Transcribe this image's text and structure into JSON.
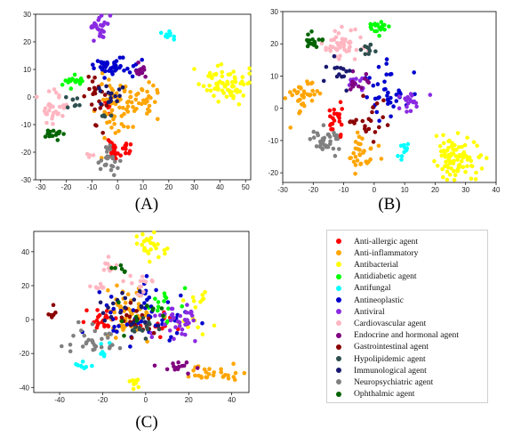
{
  "figure": {
    "captions": [
      "(A)",
      "(B)",
      "(C)"
    ],
    "legend_items": [
      {
        "label": "Anti-allergic agent",
        "color": "#ff0000"
      },
      {
        "label": "Anti-inflammatory",
        "color": "#ffa500"
      },
      {
        "label": "Antibacterial",
        "color": "#ffff00"
      },
      {
        "label": "Antidiabetic agent",
        "color": "#00ff00"
      },
      {
        "label": "Antifungal",
        "color": "#00ffff"
      },
      {
        "label": "Antineoplastic",
        "color": "#0000cd"
      },
      {
        "label": "Antiviral",
        "color": "#8a2be2"
      },
      {
        "label": "Cardiovascular agent",
        "color": "#ffb6c1"
      },
      {
        "label": "Endocrine and hormonal agent",
        "color": "#800080"
      },
      {
        "label": "Gastrointestinal agent",
        "color": "#8b0000"
      },
      {
        "label": "Hypolipidemic agent",
        "color": "#2f4f4f"
      },
      {
        "label": "Immunological agent",
        "color": "#191970"
      },
      {
        "label": "Neuropsychiatric agent",
        "color": "#808080"
      },
      {
        "label": "Ophthalmic agent",
        "color": "#006400"
      }
    ]
  },
  "chart_data": [
    {
      "type": "scatter",
      "panel": "(A)",
      "title": "",
      "xlabel": "",
      "ylabel": "",
      "xlim": [
        -32,
        52
      ],
      "ylim": [
        -30,
        30
      ],
      "xticks": [
        -30,
        -20,
        -10,
        0,
        10,
        20,
        30,
        40,
        50
      ],
      "yticks": [
        -30,
        -20,
        -10,
        0,
        10,
        20,
        30
      ],
      "clusters": [
        {
          "category": "Anti-allergic agent",
          "center": [
            1,
            -19
          ],
          "spread": [
            3,
            1.5
          ],
          "n": 26
        },
        {
          "category": "Anti-allergic agent",
          "center": [
            -3,
            -3
          ],
          "spread": [
            1.5,
            1.5
          ],
          "n": 6
        },
        {
          "category": "Anti-inflammatory",
          "center": [
            -2,
            -5
          ],
          "spread": [
            3,
            6
          ],
          "n": 45
        },
        {
          "category": "Anti-inflammatory",
          "center": [
            8,
            -2
          ],
          "spread": [
            3.5,
            3
          ],
          "n": 40
        },
        {
          "category": "Antibacterial",
          "center": [
            42,
            5
          ],
          "spread": [
            4.5,
            3
          ],
          "n": 70
        },
        {
          "category": "Antidiabetic agent",
          "center": [
            -18,
            5.5
          ],
          "spread": [
            2,
            1.2
          ],
          "n": 16
        },
        {
          "category": "Antifungal",
          "center": [
            20,
            22.5
          ],
          "spread": [
            1.2,
            1
          ],
          "n": 10
        },
        {
          "category": "Antineoplastic",
          "center": [
            -3,
            11
          ],
          "spread": [
            3,
            2
          ],
          "n": 40
        },
        {
          "category": "Antineoplastic",
          "center": [
            6,
            9
          ],
          "spread": [
            1.5,
            1.5
          ],
          "n": 8
        },
        {
          "category": "Antiviral",
          "center": [
            -7,
            25.5
          ],
          "spread": [
            2,
            2.5
          ],
          "n": 26
        },
        {
          "category": "Cardiovascular agent",
          "center": [
            -25,
            -5
          ],
          "spread": [
            2.5,
            3.5
          ],
          "n": 32
        },
        {
          "category": "Cardiovascular agent",
          "center": [
            -10,
            -21
          ],
          "spread": [
            1,
            1
          ],
          "n": 4
        },
        {
          "category": "Endocrine and hormonal agent",
          "center": [
            8.5,
            9.5
          ],
          "spread": [
            1.2,
            1
          ],
          "n": 12
        },
        {
          "category": "Gastrointestinal agent",
          "center": [
            -9,
            -2
          ],
          "spread": [
            2,
            6
          ],
          "n": 22
        },
        {
          "category": "Hypolipidemic agent",
          "center": [
            -17,
            -1
          ],
          "spread": [
            1.5,
            1.5
          ],
          "n": 8
        },
        {
          "category": "Hypolipidemic agent",
          "center": [
            -5,
            -7
          ],
          "spread": [
            1,
            1
          ],
          "n": 4
        },
        {
          "category": "Immunological agent",
          "center": [
            -2,
            2
          ],
          "spread": [
            3,
            2
          ],
          "n": 16
        },
        {
          "category": "Neuropsychiatric agent",
          "center": [
            -4,
            -22
          ],
          "spread": [
            2,
            2.5
          ],
          "n": 26
        },
        {
          "category": "Ophthalmic agent",
          "center": [
            -25,
            -13
          ],
          "spread": [
            2,
            1
          ],
          "n": 16
        }
      ]
    },
    {
      "type": "scatter",
      "panel": "(B)",
      "title": "",
      "xlabel": "",
      "ylabel": "",
      "xlim": [
        -30,
        40
      ],
      "ylim": [
        -23,
        30
      ],
      "xticks": [
        -30,
        -20,
        -10,
        0,
        10,
        20,
        30,
        40
      ],
      "yticks": [
        -20,
        -10,
        0,
        10,
        20,
        30
      ],
      "clusters": [
        {
          "category": "Anti-allergic agent",
          "center": [
            -13,
            -3
          ],
          "spread": [
            1.5,
            3
          ],
          "n": 22
        },
        {
          "category": "Anti-inflammatory",
          "center": [
            -23,
            4
          ],
          "spread": [
            2.5,
            3
          ],
          "n": 36
        },
        {
          "category": "Anti-inflammatory",
          "center": [
            -5,
            -14
          ],
          "spread": [
            2.5,
            2.5
          ],
          "n": 32
        },
        {
          "category": "Antibacterial",
          "center": [
            28,
            -15
          ],
          "spread": [
            4,
            3
          ],
          "n": 90
        },
        {
          "category": "Antidiabetic agent",
          "center": [
            1,
            25
          ],
          "spread": [
            2,
            1.5
          ],
          "n": 18
        },
        {
          "category": "Antifungal",
          "center": [
            10,
            -13
          ],
          "spread": [
            1,
            1.3
          ],
          "n": 10
        },
        {
          "category": "Antineoplastic",
          "center": [
            4,
            5
          ],
          "spread": [
            3.5,
            3.5
          ],
          "n": 40
        },
        {
          "category": "Antiviral",
          "center": [
            12,
            2
          ],
          "spread": [
            2.5,
            2
          ],
          "n": 20
        },
        {
          "category": "Antiviral",
          "center": [
            -6,
            8
          ],
          "spread": [
            2,
            1.5
          ],
          "n": 12
        },
        {
          "category": "Cardiovascular agent",
          "center": [
            -10,
            20
          ],
          "spread": [
            3,
            2.5
          ],
          "n": 46
        },
        {
          "category": "Endocrine and hormonal agent",
          "center": [
            -5,
            8
          ],
          "spread": [
            2,
            1.5
          ],
          "n": 14
        },
        {
          "category": "Gastrointestinal agent",
          "center": [
            -2,
            -4
          ],
          "spread": [
            3,
            3
          ],
          "n": 22
        },
        {
          "category": "Hypolipidemic agent",
          "center": [
            -2,
            19
          ],
          "spread": [
            1.5,
            1.5
          ],
          "n": 10
        },
        {
          "category": "Immunological agent",
          "center": [
            -13,
            10
          ],
          "spread": [
            2.5,
            3
          ],
          "n": 14
        },
        {
          "category": "Neuropsychiatric agent",
          "center": [
            -16,
            -10
          ],
          "spread": [
            2.5,
            2
          ],
          "n": 36
        },
        {
          "category": "Ophthalmic agent",
          "center": [
            -20,
            21
          ],
          "spread": [
            1.5,
            1.2
          ],
          "n": 16
        }
      ]
    },
    {
      "type": "scatter",
      "panel": "(C)",
      "title": "",
      "xlabel": "",
      "ylabel": "",
      "xlim": [
        -52,
        48
      ],
      "ylim": [
        -43,
        52
      ],
      "xticks": [
        -40,
        -20,
        0,
        20,
        40
      ],
      "yticks": [
        -40,
        -20,
        0,
        20,
        40
      ],
      "clusters": [
        {
          "category": "Anti-allergic agent",
          "center": [
            -20,
            0
          ],
          "spread": [
            3,
            3
          ],
          "n": 24
        },
        {
          "category": "Anti-allergic agent",
          "center": [
            8,
            -5
          ],
          "spread": [
            5,
            4
          ],
          "n": 12
        },
        {
          "category": "Anti-inflammatory",
          "center": [
            -7,
            3
          ],
          "spread": [
            5,
            8
          ],
          "n": 60
        },
        {
          "category": "Anti-inflammatory",
          "center": [
            33,
            -32
          ],
          "spread": [
            6,
            2
          ],
          "n": 28
        },
        {
          "category": "Antibacterial",
          "center": [
            2,
            42
          ],
          "spread": [
            4,
            5
          ],
          "n": 26
        },
        {
          "category": "Antibacterial",
          "center": [
            -5,
            -37
          ],
          "spread": [
            2,
            1.5
          ],
          "n": 10
        },
        {
          "category": "Antibacterial",
          "center": [
            22,
            3
          ],
          "spread": [
            5,
            8
          ],
          "n": 18
        },
        {
          "category": "Antidiabetic agent",
          "center": [
            9,
            8
          ],
          "spread": [
            5,
            6
          ],
          "n": 16
        },
        {
          "category": "Antifungal",
          "center": [
            -29,
            -27
          ],
          "spread": [
            2,
            1.5
          ],
          "n": 8
        },
        {
          "category": "Antifungal",
          "center": [
            -18,
            -18
          ],
          "spread": [
            3,
            3
          ],
          "n": 6
        },
        {
          "category": "Antineoplastic",
          "center": [
            -2,
            1
          ],
          "spread": [
            12,
            10
          ],
          "n": 50
        },
        {
          "category": "Antiviral",
          "center": [
            15,
            0
          ],
          "spread": [
            5,
            6
          ],
          "n": 40
        },
        {
          "category": "Cardiovascular agent",
          "center": [
            -17,
            31
          ],
          "spread": [
            2,
            2
          ],
          "n": 10
        },
        {
          "category": "Cardiovascular agent",
          "center": [
            -3,
            22
          ],
          "spread": [
            3,
            3
          ],
          "n": 14
        },
        {
          "category": "Cardiovascular agent",
          "center": [
            -22,
            19
          ],
          "spread": [
            2,
            1
          ],
          "n": 8
        },
        {
          "category": "Endocrine and hormonal agent",
          "center": [
            13,
            -27
          ],
          "spread": [
            5,
            2
          ],
          "n": 14
        },
        {
          "category": "Gastrointestinal agent",
          "center": [
            -44,
            2
          ],
          "spread": [
            1.5,
            2
          ],
          "n": 6
        },
        {
          "category": "Gastrointestinal agent",
          "center": [
            -4,
            -1
          ],
          "spread": [
            5,
            5
          ],
          "n": 20
        },
        {
          "category": "Hypolipidemic agent",
          "center": [
            -1,
            -5
          ],
          "spread": [
            4,
            4
          ],
          "n": 14
        },
        {
          "category": "Immunological agent",
          "center": [
            -6,
            6
          ],
          "spread": [
            7,
            7
          ],
          "n": 20
        },
        {
          "category": "Neuropsychiatric agent",
          "center": [
            -23,
            -13
          ],
          "spread": [
            7,
            5
          ],
          "n": 30
        },
        {
          "category": "Ophthalmic agent",
          "center": [
            -14,
            30
          ],
          "spread": [
            3,
            3
          ],
          "n": 6
        },
        {
          "category": "Ophthalmic agent",
          "center": [
            0,
            5
          ],
          "spread": [
            6,
            6
          ],
          "n": 10
        }
      ]
    }
  ]
}
